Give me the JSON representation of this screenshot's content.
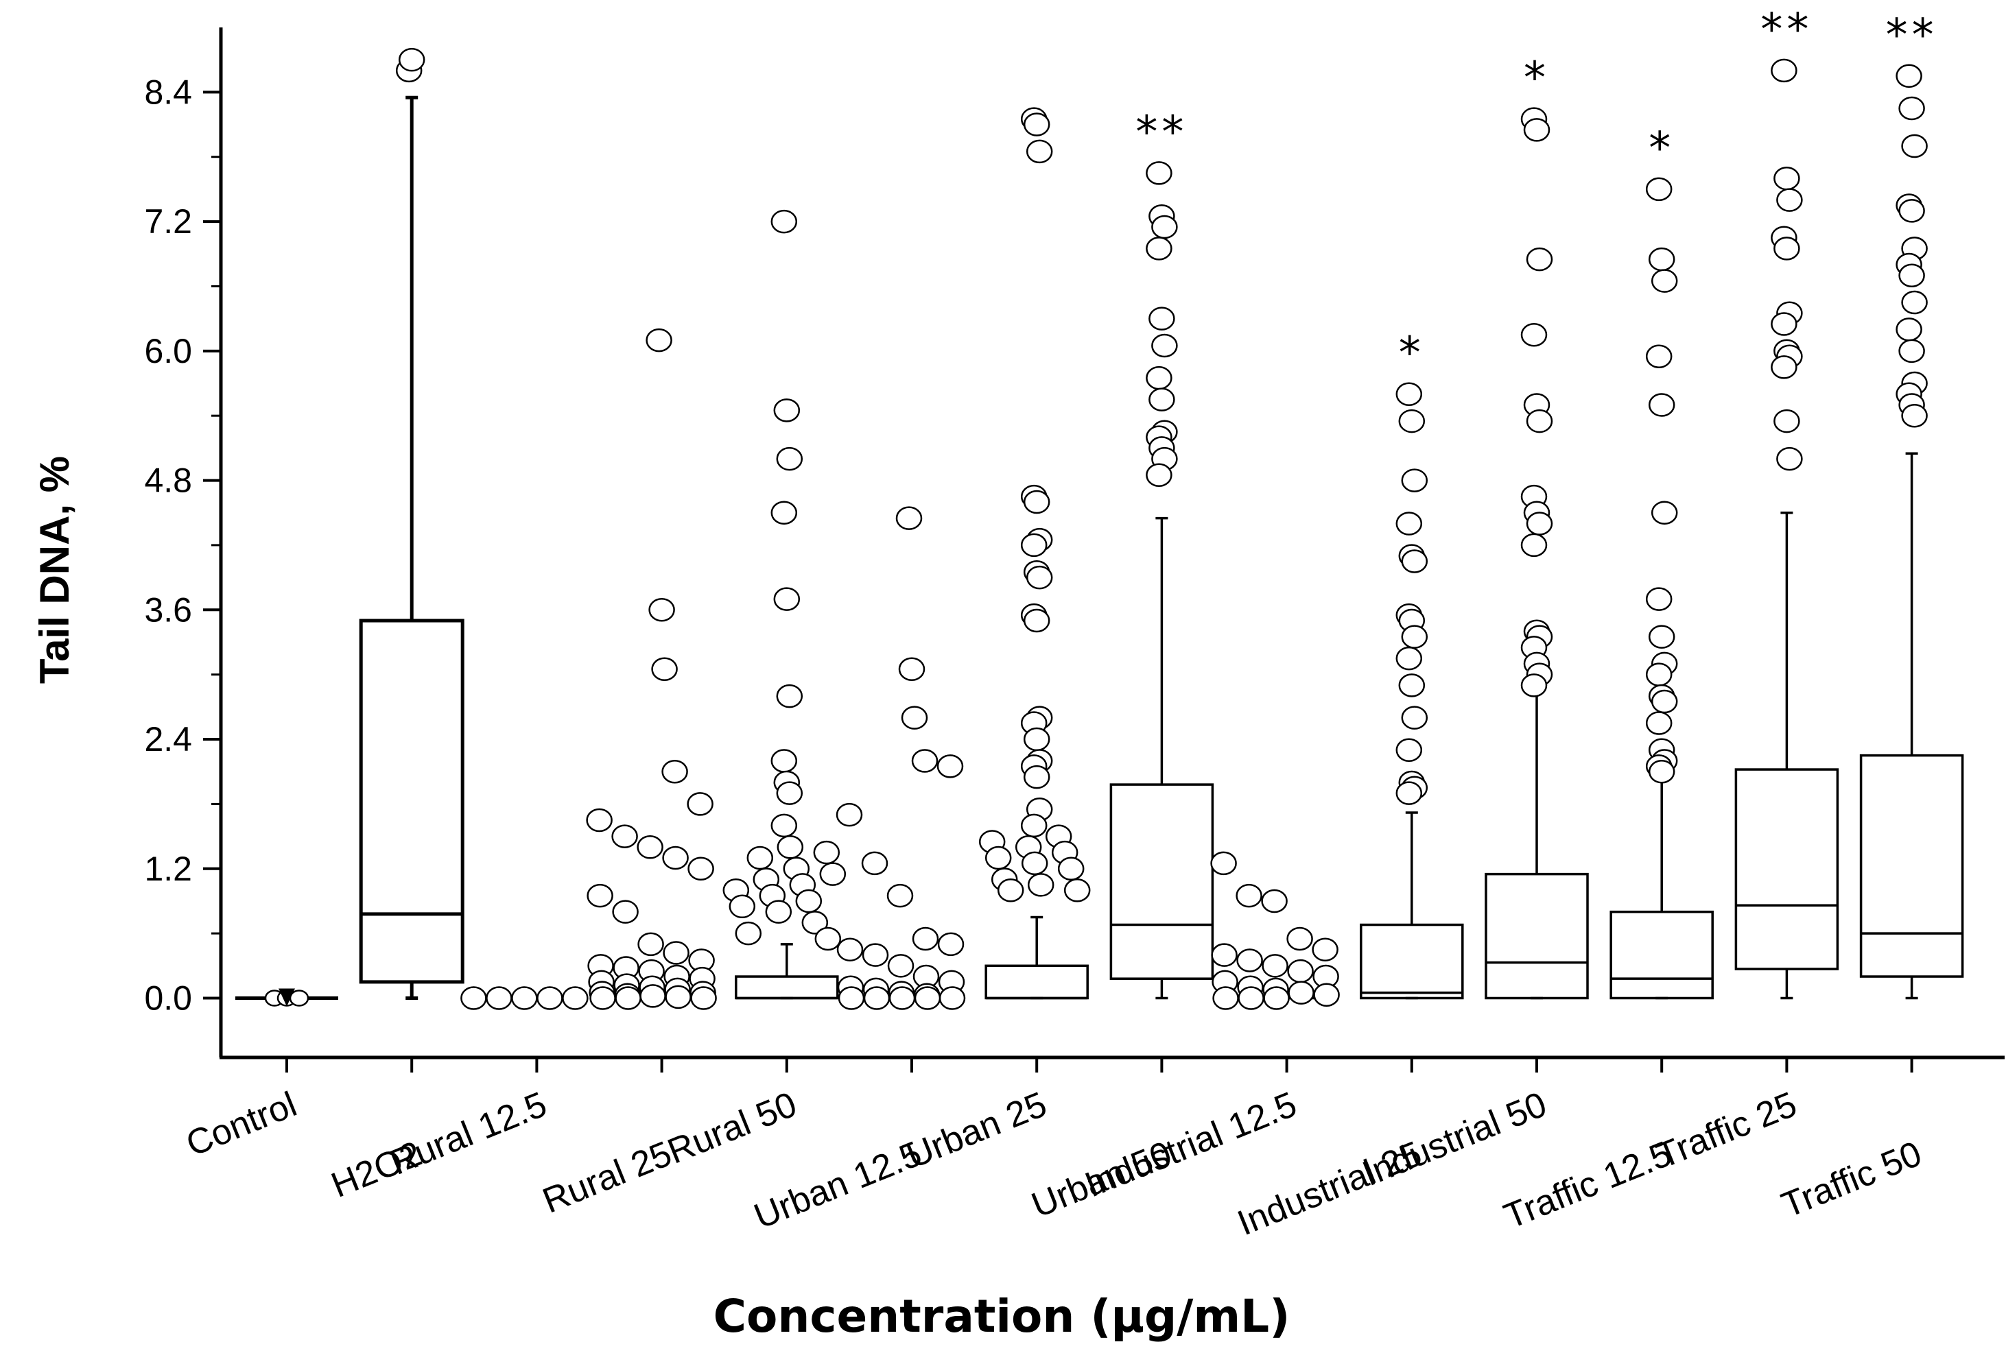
{
  "chart_data": {
    "type": "box",
    "title": "",
    "xlabel": "Concentration (µg/mL)",
    "ylabel": "Tail DNA, %",
    "ylim": [
      -0.55,
      9.0
    ],
    "yticks": [
      0.0,
      1.2,
      2.4,
      3.6,
      4.8,
      6.0,
      7.2,
      8.4
    ],
    "ytick_labels": [
      "0.0",
      "1.2",
      "2.4",
      "3.6",
      "4.8",
      "6.0",
      "7.2",
      "8.4"
    ],
    "categories": [
      "Control",
      "H2O2",
      "Rural 12.5",
      "Rural 25",
      "Rural 50",
      "Urban 12.5",
      "Urban 25",
      "Urban 50",
      "Industrial 12.5",
      "Industrial 25",
      "Industrial 50",
      "Traffic 12.5",
      "Traffic 25",
      "Traffic 50"
    ],
    "boxes": [
      {
        "category": "Control",
        "whisker_low": 0.0,
        "q1": 0.0,
        "median": 0.0,
        "q3": 0.0,
        "whisker_high": 0.0,
        "significance": "",
        "outliers": [
          0.0,
          0.0,
          0.0
        ]
      },
      {
        "category": "H2O2",
        "whisker_low": 0.0,
        "q1": 0.15,
        "median": 0.78,
        "q3": 3.5,
        "whisker_high": 8.35,
        "significance": "",
        "outliers": [
          8.6,
          8.7
        ]
      },
      {
        "category": "Rural 12.5",
        "whisker_low": 0.0,
        "q1": 0.0,
        "median": 0.0,
        "q3": 0.0,
        "whisker_high": 0.0,
        "significance": "",
        "outliers": [
          0.0,
          0.0,
          0.0,
          0.0,
          0.0
        ]
      },
      {
        "category": "Rural 25",
        "whisker_low": 0.0,
        "q1": 0.0,
        "median": 0.0,
        "q3": 0.0,
        "whisker_high": 0.0,
        "significance": "",
        "outliers": [
          6.1,
          3.6,
          3.05,
          2.1,
          1.8,
          1.65,
          1.5,
          1.4,
          1.3,
          1.2,
          0.95,
          0.8,
          0.5,
          0.42,
          0.35,
          0.3,
          0.28,
          0.25,
          0.2,
          0.18,
          0.15,
          0.12,
          0.1,
          0.08,
          0.05,
          0.05,
          0.03,
          0.02,
          0.01,
          0.0,
          0.0,
          0.0
        ]
      },
      {
        "category": "Rural 50",
        "whisker_low": 0.0,
        "q1": 0.0,
        "median": 0.0,
        "q3": 0.2,
        "whisker_high": 0.5,
        "significance": "",
        "outliers": [
          7.2,
          5.45,
          5.0,
          4.5,
          3.7,
          2.8,
          2.2,
          2.0,
          1.9,
          1.6,
          1.4,
          1.35,
          1.3,
          1.2,
          1.15,
          1.1,
          1.05,
          1.0,
          0.95,
          0.9,
          0.85,
          0.8,
          0.7,
          0.6,
          0.55
        ]
      },
      {
        "category": "Urban 12.5",
        "whisker_low": 0.0,
        "q1": 0.0,
        "median": 0.0,
        "q3": 0.0,
        "whisker_high": 0.0,
        "significance": "",
        "outliers": [
          4.45,
          3.05,
          2.6,
          2.2,
          2.15,
          1.7,
          1.25,
          0.95,
          0.55,
          0.5,
          0.45,
          0.4,
          0.3,
          0.2,
          0.15,
          0.1,
          0.08,
          0.05,
          0.03,
          0.0,
          0.0,
          0.0,
          0.0,
          0.0
        ]
      },
      {
        "category": "Urban 25",
        "whisker_low": 0.0,
        "q1": 0.0,
        "median": 0.0,
        "q3": 0.3,
        "whisker_high": 0.75,
        "significance": "",
        "outliers": [
          8.15,
          8.1,
          7.85,
          4.65,
          4.6,
          4.25,
          4.2,
          3.95,
          3.9,
          3.55,
          3.5,
          2.6,
          2.55,
          2.4,
          2.2,
          2.15,
          2.05,
          1.75,
          1.6,
          1.5,
          1.45,
          1.4,
          1.35,
          1.3,
          1.25,
          1.2,
          1.1,
          1.05,
          1.0,
          1.0
        ]
      },
      {
        "category": "Urban 50",
        "whisker_low": 0.0,
        "q1": 0.18,
        "median": 0.68,
        "q3": 1.98,
        "whisker_high": 4.45,
        "significance": "**",
        "outliers": [
          7.65,
          7.25,
          7.15,
          6.95,
          6.3,
          6.05,
          5.75,
          5.55,
          5.25,
          5.2,
          5.1,
          5.0,
          4.85
        ]
      },
      {
        "category": "Industrial 12.5",
        "whisker_low": 0.0,
        "q1": 0.0,
        "median": 0.0,
        "q3": 0.0,
        "whisker_high": 0.0,
        "significance": "",
        "outliers": [
          1.25,
          0.95,
          0.9,
          0.55,
          0.45,
          0.4,
          0.35,
          0.3,
          0.25,
          0.2,
          0.15,
          0.1,
          0.08,
          0.05,
          0.03,
          0.0,
          0.0,
          0.0
        ]
      },
      {
        "category": "Industrial 25",
        "whisker_low": 0.0,
        "q1": 0.0,
        "median": 0.05,
        "q3": 0.68,
        "whisker_high": 1.72,
        "significance": "*",
        "outliers": [
          5.6,
          5.35,
          4.8,
          4.4,
          4.1,
          4.05,
          3.55,
          3.5,
          3.35,
          3.15,
          2.9,
          2.6,
          2.3,
          2.0,
          1.95,
          1.9
        ]
      },
      {
        "category": "Industrial 50",
        "whisker_low": 0.0,
        "q1": 0.0,
        "median": 0.33,
        "q3": 1.15,
        "whisker_high": 2.85,
        "significance": "*",
        "outliers": [
          8.15,
          8.05,
          6.85,
          6.15,
          5.5,
          5.35,
          4.65,
          4.5,
          4.4,
          4.2,
          3.4,
          3.35,
          3.25,
          3.1,
          3.0,
          2.9
        ]
      },
      {
        "category": "Traffic 12.5",
        "whisker_low": 0.0,
        "q1": 0.0,
        "median": 0.18,
        "q3": 0.8,
        "whisker_high": 2.05,
        "significance": "*",
        "outliers": [
          7.5,
          6.85,
          6.65,
          5.95,
          5.5,
          4.5,
          3.7,
          3.35,
          3.1,
          3.0,
          2.8,
          2.75,
          2.55,
          2.3,
          2.2,
          2.15,
          2.1
        ]
      },
      {
        "category": "Traffic 25",
        "whisker_low": 0.0,
        "q1": 0.27,
        "median": 0.86,
        "q3": 2.12,
        "whisker_high": 4.5,
        "significance": "**",
        "outliers": [
          8.6,
          7.6,
          7.4,
          7.05,
          6.95,
          6.35,
          6.25,
          6.0,
          5.95,
          5.85,
          5.35,
          5.0
        ]
      },
      {
        "category": "Traffic 50",
        "whisker_low": 0.0,
        "q1": 0.2,
        "median": 0.6,
        "q3": 2.25,
        "whisker_high": 5.05,
        "significance": "**",
        "outliers": [
          8.55,
          8.25,
          7.9,
          7.35,
          7.3,
          6.95,
          6.8,
          6.7,
          6.45,
          6.2,
          6.0,
          5.7,
          5.6,
          5.5,
          5.4
        ]
      }
    ]
  }
}
